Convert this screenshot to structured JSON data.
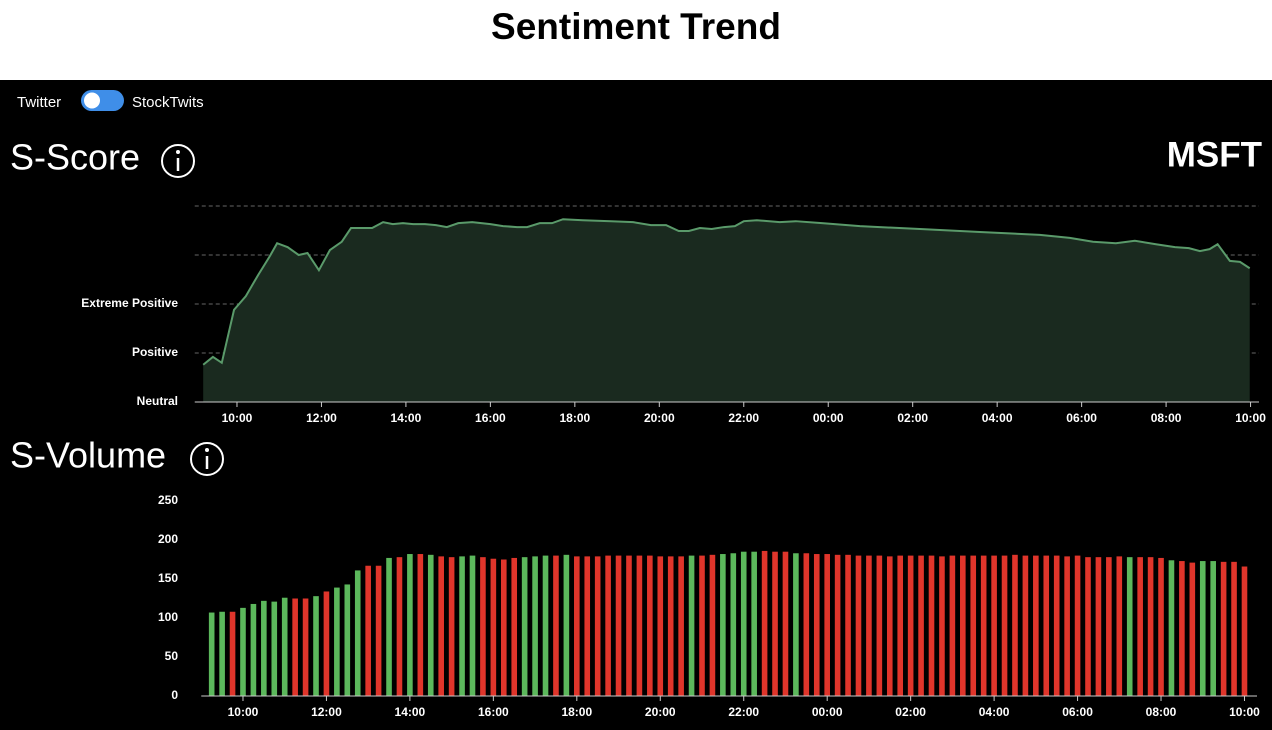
{
  "header": {
    "title": "Sentiment Trend"
  },
  "toggle": {
    "left": "Twitter",
    "right": "StockTwits"
  },
  "ticker": "MSFT",
  "chart_data": [
    {
      "type": "area",
      "title": "S-Score",
      "color": "#5a9a6a",
      "fill": "#1a2a1f",
      "grid": true,
      "x": [
        9.2,
        9.43,
        9.64,
        9.93,
        10.21,
        10.5,
        10.78,
        10.95,
        11.2,
        11.46,
        11.67,
        11.94,
        12.2,
        12.48,
        12.7,
        13.2,
        13.46,
        13.69,
        13.93,
        14.17,
        14.45,
        14.71,
        14.97,
        15.24,
        15.57,
        16.0,
        16.3,
        16.63,
        16.87,
        17.17,
        17.46,
        17.72,
        18.19,
        18.86,
        19.38,
        19.8,
        20.16,
        20.46,
        20.7,
        20.96,
        21.24,
        21.53,
        21.79,
        22.0,
        22.31,
        22.85,
        23.23,
        23.85,
        24.75,
        26.17,
        27.59,
        29.01,
        29.72,
        30.27,
        30.81,
        31.26,
        31.76,
        32.21,
        32.54,
        32.8,
        33.03,
        33.22,
        33.51,
        33.75,
        33.98
      ],
      "values": [
        0.76,
        0.92,
        0.8,
        1.88,
        2.16,
        2.59,
        2.98,
        3.24,
        3.16,
        3.0,
        3.04,
        2.69,
        3.1,
        3.27,
        3.55,
        3.55,
        3.67,
        3.63,
        3.65,
        3.63,
        3.63,
        3.61,
        3.57,
        3.65,
        3.67,
        3.63,
        3.59,
        3.57,
        3.57,
        3.65,
        3.65,
        3.73,
        3.71,
        3.69,
        3.67,
        3.61,
        3.61,
        3.49,
        3.49,
        3.55,
        3.53,
        3.57,
        3.59,
        3.69,
        3.71,
        3.67,
        3.69,
        3.65,
        3.59,
        3.53,
        3.47,
        3.41,
        3.35,
        3.27,
        3.24,
        3.29,
        3.22,
        3.16,
        3.14,
        3.08,
        3.12,
        3.22,
        2.88,
        2.86,
        2.73
      ],
      "xlim": [
        9,
        34.2
      ],
      "xticks": [
        {
          "value": 10,
          "label": "10:00"
        },
        {
          "value": 12,
          "label": "12:00"
        },
        {
          "value": 14,
          "label": "14:00"
        },
        {
          "value": 16,
          "label": "16:00"
        },
        {
          "value": 18,
          "label": "18:00"
        },
        {
          "value": 20,
          "label": "20:00"
        },
        {
          "value": 22,
          "label": "22:00"
        },
        {
          "value": 24,
          "label": "00:00"
        },
        {
          "value": 26,
          "label": "02:00"
        },
        {
          "value": 28,
          "label": "04:00"
        },
        {
          "value": 30,
          "label": "06:00"
        },
        {
          "value": 32,
          "label": "08:00"
        },
        {
          "value": 34,
          "label": "10:00"
        }
      ],
      "ylim": [
        0,
        4
      ],
      "yticks": [
        {
          "value": 0,
          "label": "Neutral"
        },
        {
          "value": 1,
          "label": "Positive"
        },
        {
          "value": 2,
          "label": "Extreme Positive"
        },
        {
          "value": 3,
          "label": null
        },
        {
          "value": 4,
          "label": null
        }
      ]
    },
    {
      "type": "bar",
      "title": "S-Volume",
      "grid": false,
      "x": [
        9.25,
        9.5,
        9.75,
        10,
        10.25,
        10.5,
        10.75,
        11,
        11.25,
        11.5,
        11.75,
        12,
        12.25,
        12.5,
        12.75,
        13,
        13.25,
        13.5,
        13.75,
        14,
        14.25,
        14.5,
        14.75,
        15,
        15.25,
        15.5,
        15.75,
        16,
        16.25,
        16.5,
        16.75,
        17,
        17.25,
        17.5,
        17.75,
        18,
        18.25,
        18.5,
        18.75,
        19,
        19.25,
        19.5,
        19.75,
        20,
        20.25,
        20.5,
        20.75,
        21,
        21.25,
        21.5,
        21.75,
        22,
        22.25,
        22.5,
        22.75,
        23,
        23.25,
        23.5,
        23.75,
        24,
        24.25,
        24.5,
        24.75,
        25,
        25.25,
        25.5,
        25.75,
        26,
        26.25,
        26.5,
        26.75,
        27,
        27.25,
        27.5,
        27.75,
        28,
        28.25,
        28.5,
        28.75,
        29,
        29.25,
        29.5,
        29.75,
        30,
        30.25,
        30.5,
        30.75,
        31,
        31.25,
        31.5,
        31.75,
        32,
        32.25,
        32.5,
        32.75,
        33,
        33.25,
        33.5,
        33.75,
        34
      ],
      "values": [
        107,
        108,
        108,
        113,
        118,
        122,
        121,
        126,
        125,
        125,
        128,
        134,
        139,
        143,
        161,
        167,
        167,
        177,
        178,
        182,
        182,
        181,
        179,
        178,
        179,
        180,
        178,
        176,
        175,
        177,
        178,
        179,
        180,
        180,
        181,
        179,
        179,
        179,
        180,
        180,
        180,
        180,
        180,
        179,
        179,
        179,
        180,
        180,
        181,
        182,
        183,
        185,
        185,
        186,
        185,
        185,
        183,
        183,
        182,
        182,
        181,
        181,
        180,
        180,
        180,
        179,
        180,
        180,
        180,
        180,
        179,
        180,
        180,
        180,
        180,
        180,
        180,
        181,
        180,
        180,
        180,
        180,
        179,
        180,
        178,
        178,
        178,
        179,
        178,
        178,
        178,
        177,
        174,
        173,
        171,
        173,
        173,
        172,
        172,
        166
      ],
      "colors": [
        "#5cb85c",
        "#5cb85c",
        "#e0352b",
        "#5cb85c",
        "#5cb85c",
        "#5cb85c",
        "#5cb85c",
        "#5cb85c",
        "#e0352b",
        "#e0352b",
        "#5cb85c",
        "#e0352b",
        "#5cb85c",
        "#5cb85c",
        "#5cb85c",
        "#e0352b",
        "#e0352b",
        "#5cb85c",
        "#e0352b",
        "#5cb85c",
        "#e0352b",
        "#5cb85c",
        "#e0352b",
        "#e0352b",
        "#5cb85c",
        "#5cb85c",
        "#e0352b",
        "#e0352b",
        "#e0352b",
        "#e0352b",
        "#5cb85c",
        "#5cb85c",
        "#5cb85c",
        "#e0352b",
        "#5cb85c",
        "#e0352b",
        "#e0352b",
        "#e0352b",
        "#e0352b",
        "#e0352b",
        "#e0352b",
        "#e0352b",
        "#e0352b",
        "#e0352b",
        "#e0352b",
        "#e0352b",
        "#5cb85c",
        "#e0352b",
        "#e0352b",
        "#5cb85c",
        "#5cb85c",
        "#5cb85c",
        "#5cb85c",
        "#e0352b",
        "#e0352b",
        "#e0352b",
        "#5cb85c",
        "#e0352b",
        "#e0352b",
        "#e0352b",
        "#e0352b",
        "#e0352b",
        "#e0352b",
        "#e0352b",
        "#e0352b",
        "#e0352b",
        "#e0352b",
        "#e0352b",
        "#e0352b",
        "#e0352b",
        "#e0352b",
        "#e0352b",
        "#e0352b",
        "#e0352b",
        "#e0352b",
        "#e0352b",
        "#e0352b",
        "#e0352b",
        "#e0352b",
        "#e0352b",
        "#e0352b",
        "#e0352b",
        "#e0352b",
        "#e0352b",
        "#e0352b",
        "#e0352b",
        "#e0352b",
        "#e0352b",
        "#5cb85c",
        "#e0352b",
        "#e0352b",
        "#e0352b",
        "#5cb85c",
        "#e0352b",
        "#e0352b",
        "#5cb85c",
        "#5cb85c",
        "#e0352b",
        "#e0352b",
        "#e0352b"
      ],
      "xlim": [
        9,
        34.3
      ],
      "xticks": [
        {
          "value": 10,
          "label": "10:00"
        },
        {
          "value": 12,
          "label": "12:00"
        },
        {
          "value": 14,
          "label": "14:00"
        },
        {
          "value": 16,
          "label": "16:00"
        },
        {
          "value": 18,
          "label": "18:00"
        },
        {
          "value": 20,
          "label": "20:00"
        },
        {
          "value": 22,
          "label": "22:00"
        },
        {
          "value": 24,
          "label": "00:00"
        },
        {
          "value": 26,
          "label": "02:00"
        },
        {
          "value": 28,
          "label": "04:00"
        },
        {
          "value": 30,
          "label": "06:00"
        },
        {
          "value": 32,
          "label": "08:00"
        },
        {
          "value": 34,
          "label": "10:00"
        }
      ],
      "ylim": [
        0,
        250
      ],
      "yticks": [
        0,
        50,
        100,
        150,
        200,
        250
      ]
    }
  ]
}
